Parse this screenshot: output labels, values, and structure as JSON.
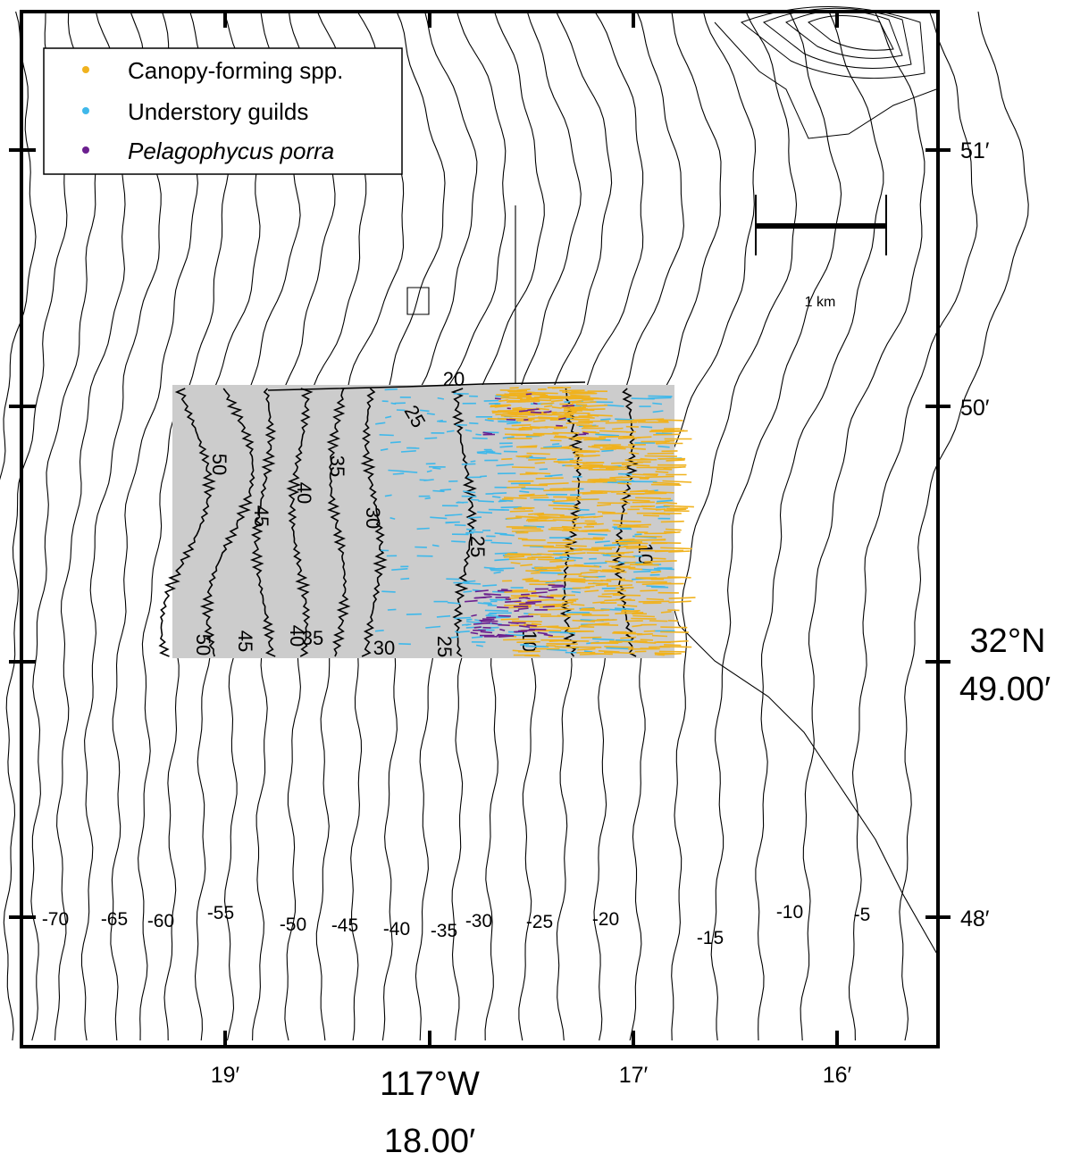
{
  "map": {
    "legend": {
      "items": [
        {
          "label": "Canopy-forming spp.",
          "color": "#f0b21e",
          "italic": false
        },
        {
          "label": "Understory guilds",
          "color": "#3fb8ea",
          "italic": false
        },
        {
          "label": "Pelagophycus porra",
          "color": "#6b1f8f",
          "italic": true
        }
      ]
    },
    "scale_bar": {
      "label": "1 km"
    },
    "x_axis": {
      "tick_labels": [
        "19′",
        "17′",
        "16′"
      ],
      "center_label_line1": "117°W",
      "center_label_line2": "18.00′"
    },
    "y_axis": {
      "tick_labels": [
        "51′",
        "50′",
        "48′"
      ],
      "center_label_line1": "32°N",
      "center_label_line2": "49.00′"
    },
    "bottom_contour_labels": [
      "-70",
      "-65",
      "-60",
      "-55",
      "-50",
      "-45",
      "-40",
      "-35",
      "-30",
      "-25",
      "-20",
      "-15",
      "-10",
      "-5"
    ],
    "inset_contour_labels": [
      "50",
      "45",
      "40",
      "35",
      "30",
      "25",
      "20",
      "25",
      "10",
      "50",
      "45",
      "40",
      "35",
      "30",
      "25",
      "10"
    ],
    "colors": {
      "frame": "#000000",
      "contour": "#000000",
      "inset_background": "#cccccc",
      "canopy": "#f0b21e",
      "understory": "#3fb8ea",
      "pelagophycus": "#6b1f8f"
    }
  }
}
